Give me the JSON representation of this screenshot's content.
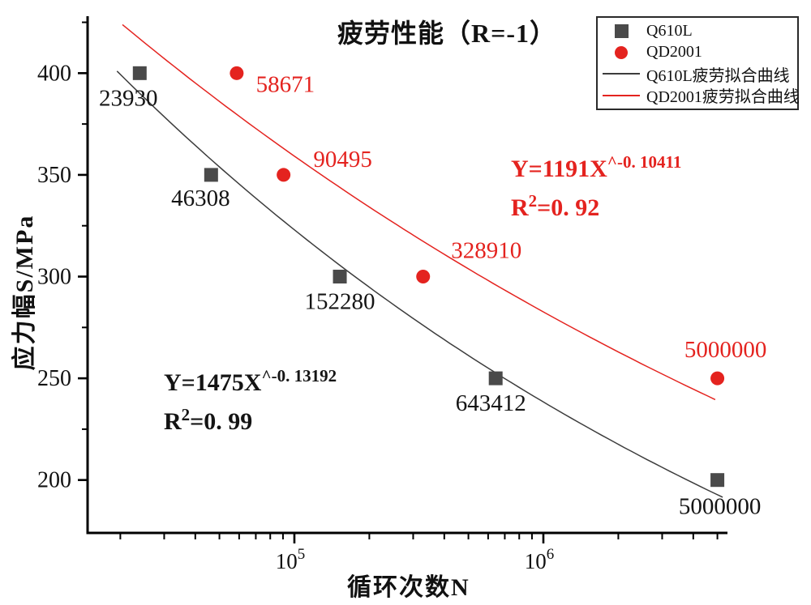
{
  "title": "疲劳性能（R=-1）",
  "x_axis_label": "循环次数N",
  "y_axis_label": "应力幅S/MPa",
  "colors": {
    "red": "#e4231f",
    "dark_gray": "#4a4a4a",
    "black": "#111111"
  },
  "legend": {
    "items": [
      {
        "label": "Q610L",
        "marker": "square"
      },
      {
        "label": "QD2001",
        "marker": "circle"
      },
      {
        "label": "Q610L疲劳拟合曲线",
        "marker": "black-line"
      },
      {
        "label": "QD2001疲劳拟合曲线",
        "marker": "red-line"
      }
    ]
  },
  "annotations": {
    "qd2001": {
      "eq_base": "Y=1191X",
      "eq_exp": "^-0. 10411",
      "r2_base": "R",
      "r2_sup": "2",
      "r2_rest": "=0. 92"
    },
    "q610l": {
      "eq_base": "Y=1475X",
      "eq_exp": "^-0. 13192",
      "r2_base": "R",
      "r2_sup": "2",
      "r2_rest": "=0. 99"
    }
  },
  "chart_data": {
    "type": "scatter",
    "title": "疲劳性能（R=-1）",
    "xlabel": "循环次数N",
    "ylabel": "应力幅S/MPa",
    "x_scale": "log",
    "grid": false,
    "legend_position": "top-right",
    "xlim": [
      14774,
      5488000
    ],
    "ylim": [
      174,
      428
    ],
    "y_major_ticks": [
      400,
      350,
      300,
      250,
      200
    ],
    "y_minor_ticks": [
      425,
      375,
      325,
      275,
      225
    ],
    "x_major_ticks": [
      {
        "value": 100000,
        "base": "10",
        "exp": "5"
      },
      {
        "value": 1000000,
        "base": "10",
        "exp": "6"
      }
    ],
    "x_minor_decades": [
      4,
      5,
      6
    ],
    "series": [
      {
        "name": "Q610L",
        "marker": "square",
        "color": "#4a4a4a",
        "label_color": "#141414",
        "points": [
          {
            "N": 23930,
            "S": 400,
            "label": "23930",
            "dx": -14,
            "dy": 30
          },
          {
            "N": 46308,
            "S": 350,
            "label": "46308",
            "dx": -13,
            "dy": 28
          },
          {
            "N": 152280,
            "S": 300,
            "label": "152280",
            "dx": 0,
            "dy": 30
          },
          {
            "N": 643412,
            "S": 250,
            "label": "643412",
            "dx": -6,
            "dy": 30
          },
          {
            "N": 5000000,
            "S": 200,
            "label": "5000000",
            "dx": 3,
            "dy": 32
          }
        ]
      },
      {
        "name": "QD2001",
        "marker": "circle",
        "color": "#e4231f",
        "label_color": "#e4231f",
        "points": [
          {
            "N": 58671,
            "S": 400,
            "label": "58671",
            "dx": 60,
            "dy": 13
          },
          {
            "N": 90495,
            "S": 350,
            "label": "90495",
            "dx": 73,
            "dy": -20
          },
          {
            "N": 328910,
            "S": 300,
            "label": "328910",
            "dx": 78,
            "dy": -33
          },
          {
            "N": 5000000,
            "S": 250,
            "label": "5000000",
            "dx": 10,
            "dy": -36
          }
        ]
      }
    ],
    "fits": [
      {
        "name": "Q610L疲劳拟合曲线",
        "color": "#3c3c3c",
        "a": 1475,
        "b": -0.13192,
        "range": [
          19400,
          5250000
        ],
        "equation": "Y=1475X^-0.13192",
        "r_squared": 0.99
      },
      {
        "name": "QD2001疲劳拟合曲线",
        "color": "#e4231f",
        "a": 1191,
        "b": -0.10411,
        "range": [
          20400,
          4900000
        ],
        "equation": "Y=1191X^-0.10411",
        "r_squared": 0.92
      }
    ]
  }
}
